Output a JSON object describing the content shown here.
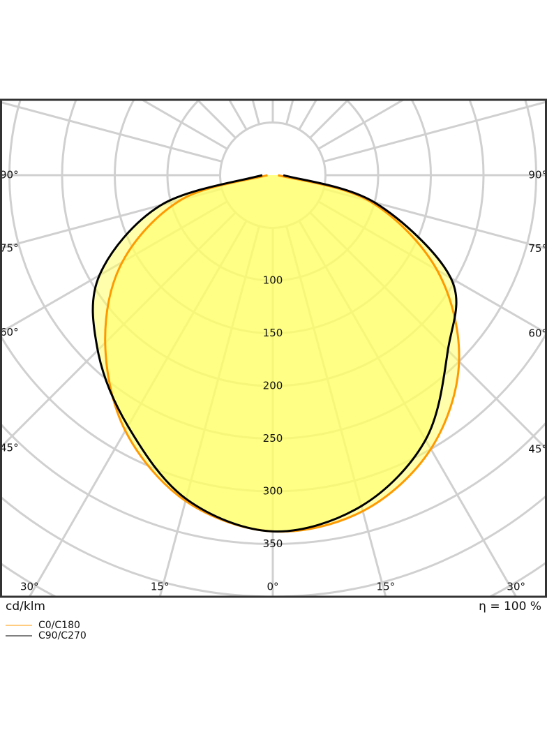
{
  "chart_data": {
    "type": "polar",
    "unit_label": "cd/klm",
    "efficiency_label": "η = 100 %",
    "angles": [
      -90,
      -75,
      -60,
      -45,
      -30,
      -15,
      0,
      15,
      30,
      45,
      60,
      75,
      90
    ],
    "series": [
      {
        "name": "C0/C180",
        "color": "#ff9900",
        "values": [
          5,
          90,
          165,
          225,
          280,
          320,
          338,
          330,
          300,
          250,
          180,
          95,
          5
        ]
      },
      {
        "name": "C90/C270",
        "color": "#000000",
        "values": [
          10,
          110,
          190,
          235,
          275,
          318,
          338,
          325,
          290,
          235,
          195,
          100,
          10
        ]
      }
    ],
    "rgrid": [
      50,
      100,
      150,
      200,
      250,
      300,
      350,
      400,
      450,
      500
    ],
    "rticks": [
      100,
      150,
      200,
      250,
      300,
      350
    ],
    "agrid": [
      0,
      15,
      30,
      45,
      60,
      75,
      90,
      105,
      120,
      135,
      150,
      165,
      180,
      195,
      210,
      225,
      240,
      255,
      270,
      285,
      300,
      315,
      330,
      345
    ],
    "angle_ticks": [
      {
        "value": -90,
        "label": "90°"
      },
      {
        "value": -75,
        "label": "75°"
      },
      {
        "value": -60,
        "label": "60°"
      },
      {
        "value": -45,
        "label": "45°"
      },
      {
        "value": -30,
        "label": "30°"
      },
      {
        "value": -15,
        "label": "15°"
      },
      {
        "value": 0,
        "label": "0°"
      },
      {
        "value": 15,
        "label": "15°"
      },
      {
        "value": 30,
        "label": "30°"
      },
      {
        "value": 45,
        "label": "45°"
      },
      {
        "value": 60,
        "label": "60°"
      },
      {
        "value": 75,
        "label": "75°"
      },
      {
        "value": 90,
        "label": "90°"
      }
    ],
    "fill": "#ffff66"
  }
}
